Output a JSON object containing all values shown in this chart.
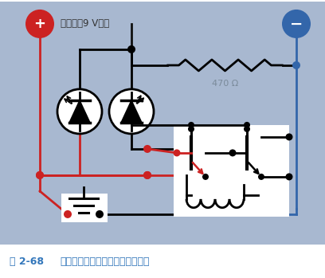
{
  "bg_color": "#a8b8d0",
  "white": "#ffffff",
  "red": "#cc2222",
  "blue": "#3366aa",
  "black": "#111111",
  "gray_text": "#7a8a9a",
  "caption_blue": "#3377bb",
  "plus_label": "+",
  "minus_label": "−",
  "battery_text": "电池供甖9 V直流",
  "resistor_label": "470 Ω",
  "caption_bold": "图 2-68",
  "caption_text": "与面包板线路连接相对应的电路图"
}
